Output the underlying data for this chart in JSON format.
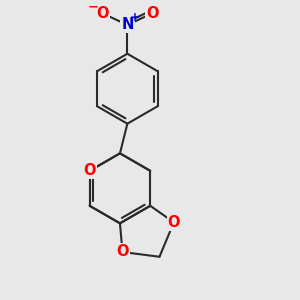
{
  "bg_color": "#e8e8e8",
  "bond_color": "#2a2a2a",
  "bond_width": 1.5,
  "atom_colors": {
    "O": "#ff0000",
    "N": "#0000cc",
    "C": "#2a2a2a"
  },
  "font_size_atom": 10.5,
  "figsize": [
    3.0,
    3.0
  ],
  "dpi": 100,
  "xlim": [
    -0.5,
    5.5
  ],
  "ylim": [
    -0.5,
    6.5
  ]
}
